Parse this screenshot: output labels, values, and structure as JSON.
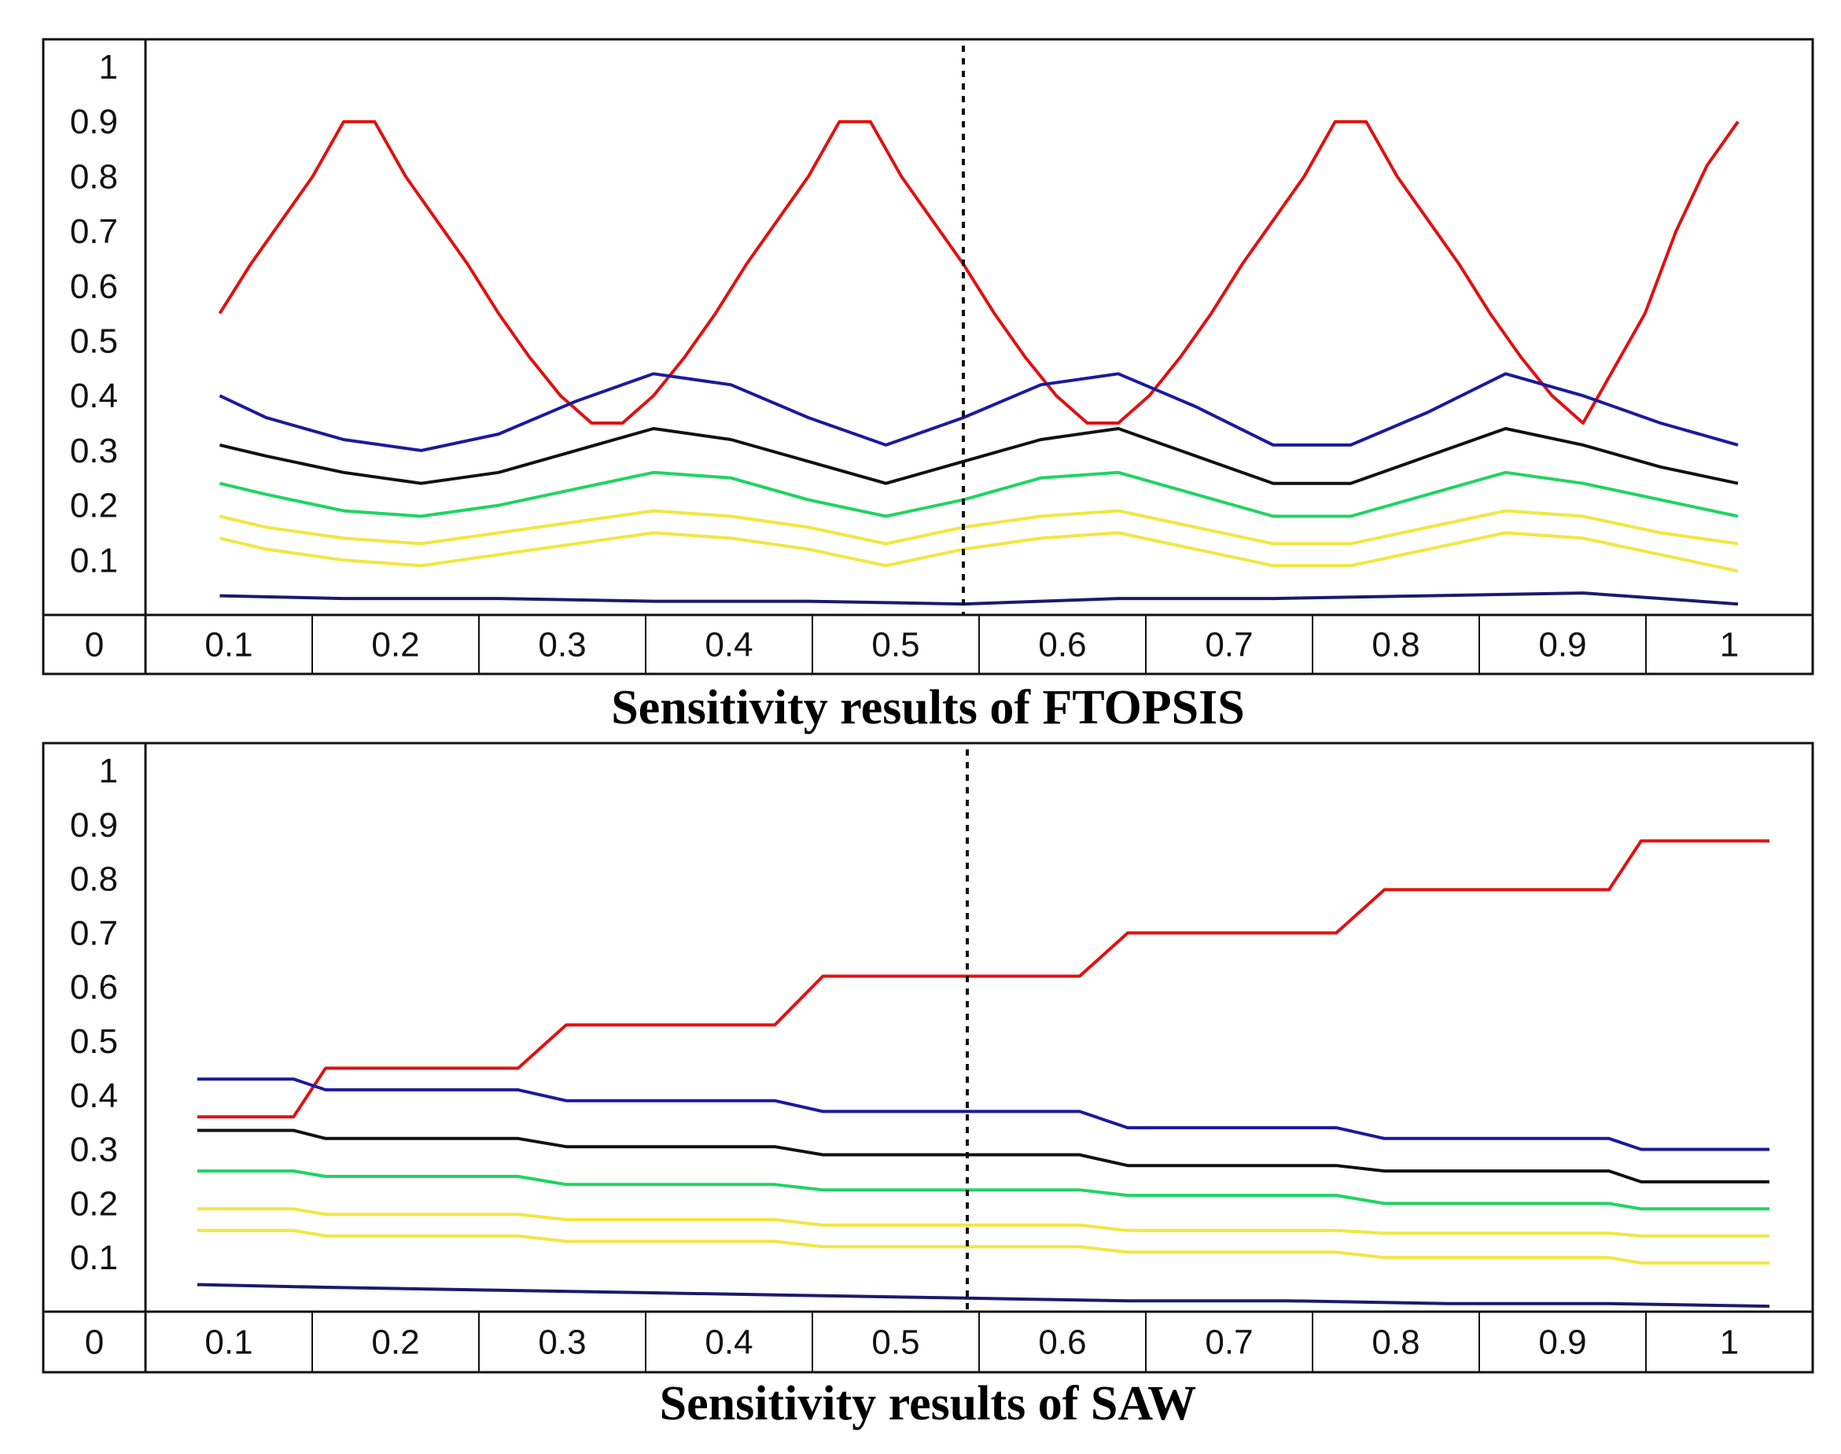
{
  "chart_data": [
    {
      "type": "line",
      "title": "Sensitivity results of FTOPSIS",
      "xlabel": "",
      "ylabel": "",
      "ylim": [
        0,
        1
      ],
      "xlim": [
        0,
        1
      ],
      "y_ticks": [
        "0.1",
        "0.2",
        "0.3",
        "0.4",
        "0.5",
        "0.6",
        "0.7",
        "0.8",
        "0.9",
        "1"
      ],
      "x_labels": [
        "0",
        "0.1",
        "0.2",
        "0.3",
        "0.4",
        "0.5",
        "0.6",
        "0.7",
        "0.8",
        "0.9",
        "1"
      ],
      "reference_line": {
        "x": 0.5,
        "style": "dotted"
      },
      "series": [
        {
          "name": "red",
          "color": "#e11010",
          "x": [
            0.02,
            0.04,
            0.06,
            0.08,
            0.1,
            0.12,
            0.14,
            0.16,
            0.18,
            0.2,
            0.22,
            0.24,
            0.26,
            0.28,
            0.3,
            0.32,
            0.34,
            0.36,
            0.38,
            0.4,
            0.42,
            0.44,
            0.46,
            0.48,
            0.5,
            0.52,
            0.54,
            0.56,
            0.58,
            0.6,
            0.62,
            0.64,
            0.66,
            0.68,
            0.7,
            0.72,
            0.74,
            0.76,
            0.78,
            0.8,
            0.82,
            0.84,
            0.86,
            0.88,
            0.9,
            0.92,
            0.94,
            0.96,
            0.98,
            1.0
          ],
          "values": [
            0.55,
            0.64,
            0.72,
            0.8,
            0.9,
            0.9,
            0.8,
            0.72,
            0.64,
            0.55,
            0.47,
            0.4,
            0.35,
            0.35,
            0.4,
            0.47,
            0.55,
            0.64,
            0.72,
            0.8,
            0.9,
            0.9,
            0.8,
            0.72,
            0.64,
            0.55,
            0.47,
            0.4,
            0.35,
            0.35,
            0.4,
            0.47,
            0.55,
            0.64,
            0.72,
            0.8,
            0.9,
            0.9,
            0.8,
            0.72,
            0.64,
            0.55,
            0.47,
            0.4,
            0.35,
            0.45,
            0.55,
            0.7,
            0.82,
            0.9
          ]
        },
        {
          "name": "blue",
          "color": "#1a1a9e",
          "x": [
            0.02,
            0.05,
            0.1,
            0.15,
            0.2,
            0.25,
            0.3,
            0.35,
            0.4,
            0.45,
            0.5,
            0.55,
            0.6,
            0.65,
            0.7,
            0.75,
            0.8,
            0.85,
            0.9,
            0.95,
            1.0
          ],
          "values": [
            0.4,
            0.36,
            0.32,
            0.3,
            0.33,
            0.39,
            0.44,
            0.42,
            0.36,
            0.31,
            0.36,
            0.42,
            0.44,
            0.38,
            0.31,
            0.31,
            0.37,
            0.44,
            0.4,
            0.35,
            0.31
          ]
        },
        {
          "name": "black",
          "color": "#111111",
          "x": [
            0.02,
            0.05,
            0.1,
            0.15,
            0.2,
            0.25,
            0.3,
            0.35,
            0.4,
            0.45,
            0.5,
            0.55,
            0.6,
            0.65,
            0.7,
            0.75,
            0.8,
            0.85,
            0.9,
            0.95,
            1.0
          ],
          "values": [
            0.31,
            0.29,
            0.26,
            0.24,
            0.26,
            0.3,
            0.34,
            0.32,
            0.28,
            0.24,
            0.28,
            0.32,
            0.34,
            0.29,
            0.24,
            0.24,
            0.29,
            0.34,
            0.31,
            0.27,
            0.24
          ]
        },
        {
          "name": "green",
          "color": "#1fd460",
          "x": [
            0.02,
            0.05,
            0.1,
            0.15,
            0.2,
            0.25,
            0.3,
            0.35,
            0.4,
            0.45,
            0.5,
            0.55,
            0.6,
            0.65,
            0.7,
            0.75,
            0.8,
            0.85,
            0.9,
            0.95,
            1.0
          ],
          "values": [
            0.24,
            0.22,
            0.19,
            0.18,
            0.2,
            0.23,
            0.26,
            0.25,
            0.21,
            0.18,
            0.21,
            0.25,
            0.26,
            0.22,
            0.18,
            0.18,
            0.22,
            0.26,
            0.24,
            0.21,
            0.18
          ]
        },
        {
          "name": "yellow",
          "color": "#f2e640",
          "x": [
            0.02,
            0.05,
            0.1,
            0.15,
            0.2,
            0.25,
            0.3,
            0.35,
            0.4,
            0.45,
            0.5,
            0.55,
            0.6,
            0.65,
            0.7,
            0.75,
            0.8,
            0.85,
            0.9,
            0.95,
            1.0
          ],
          "values": [
            0.18,
            0.16,
            0.14,
            0.13,
            0.15,
            0.17,
            0.19,
            0.18,
            0.16,
            0.13,
            0.16,
            0.18,
            0.19,
            0.16,
            0.13,
            0.13,
            0.16,
            0.19,
            0.18,
            0.15,
            0.13
          ]
        },
        {
          "name": "yellow-2",
          "color": "#f2e640",
          "x": [
            0.02,
            0.05,
            0.1,
            0.15,
            0.2,
            0.25,
            0.3,
            0.35,
            0.4,
            0.45,
            0.5,
            0.55,
            0.6,
            0.65,
            0.7,
            0.75,
            0.8,
            0.85,
            0.9,
            0.95,
            1.0
          ],
          "values": [
            0.14,
            0.12,
            0.1,
            0.09,
            0.11,
            0.13,
            0.15,
            0.14,
            0.12,
            0.09,
            0.12,
            0.14,
            0.15,
            0.12,
            0.09,
            0.09,
            0.12,
            0.15,
            0.14,
            0.11,
            0.08
          ]
        },
        {
          "name": "navy-low",
          "color": "#1a1a6e",
          "x": [
            0.02,
            0.1,
            0.2,
            0.3,
            0.4,
            0.5,
            0.6,
            0.7,
            0.8,
            0.9,
            1.0
          ],
          "values": [
            0.035,
            0.03,
            0.03,
            0.025,
            0.025,
            0.02,
            0.03,
            0.03,
            0.035,
            0.04,
            0.02
          ]
        }
      ]
    },
    {
      "type": "line",
      "title": "Sensitivity results of SAW",
      "xlabel": "",
      "ylabel": "",
      "ylim": [
        0,
        1
      ],
      "xlim": [
        0,
        1
      ],
      "y_ticks": [
        "0.1",
        "0.2",
        "0.3",
        "0.4",
        "0.5",
        "0.6",
        "0.7",
        "0.8",
        "0.9",
        "1"
      ],
      "x_labels": [
        "0",
        "0.1",
        "0.2",
        "0.3",
        "0.4",
        "0.5",
        "0.6",
        "0.7",
        "0.8",
        "0.9",
        "1"
      ],
      "reference_line": {
        "x": 0.5,
        "style": "dotted"
      },
      "series": [
        {
          "name": "red",
          "color": "#e11010",
          "x": [
            0.02,
            0.08,
            0.1,
            0.22,
            0.25,
            0.38,
            0.41,
            0.57,
            0.6,
            0.73,
            0.76,
            0.9,
            0.92,
            1.0
          ],
          "values": [
            0.36,
            0.36,
            0.45,
            0.45,
            0.53,
            0.53,
            0.62,
            0.62,
            0.7,
            0.7,
            0.78,
            0.78,
            0.87,
            0.87
          ]
        },
        {
          "name": "blue",
          "color": "#1a1a9e",
          "x": [
            0.02,
            0.08,
            0.1,
            0.22,
            0.25,
            0.38,
            0.41,
            0.57,
            0.6,
            0.73,
            0.76,
            0.9,
            0.92,
            1.0
          ],
          "values": [
            0.43,
            0.43,
            0.41,
            0.41,
            0.39,
            0.39,
            0.37,
            0.37,
            0.34,
            0.34,
            0.32,
            0.32,
            0.3,
            0.3
          ]
        },
        {
          "name": "black",
          "color": "#111111",
          "x": [
            0.02,
            0.08,
            0.1,
            0.22,
            0.25,
            0.38,
            0.41,
            0.57,
            0.6,
            0.73,
            0.76,
            0.9,
            0.92,
            1.0
          ],
          "values": [
            0.335,
            0.335,
            0.32,
            0.32,
            0.305,
            0.305,
            0.29,
            0.29,
            0.27,
            0.27,
            0.26,
            0.26,
            0.24,
            0.24
          ]
        },
        {
          "name": "green",
          "color": "#1fd460",
          "x": [
            0.02,
            0.08,
            0.1,
            0.22,
            0.25,
            0.38,
            0.41,
            0.57,
            0.6,
            0.73,
            0.76,
            0.9,
            0.92,
            1.0
          ],
          "values": [
            0.26,
            0.26,
            0.25,
            0.25,
            0.235,
            0.235,
            0.225,
            0.225,
            0.215,
            0.215,
            0.2,
            0.2,
            0.19,
            0.19
          ]
        },
        {
          "name": "yellow",
          "color": "#f2e640",
          "x": [
            0.02,
            0.08,
            0.1,
            0.22,
            0.25,
            0.38,
            0.41,
            0.57,
            0.6,
            0.73,
            0.76,
            0.9,
            0.92,
            1.0
          ],
          "values": [
            0.19,
            0.19,
            0.18,
            0.18,
            0.17,
            0.17,
            0.16,
            0.16,
            0.15,
            0.15,
            0.145,
            0.145,
            0.14,
            0.14
          ]
        },
        {
          "name": "yellow-2",
          "color": "#f2e640",
          "x": [
            0.02,
            0.08,
            0.1,
            0.22,
            0.25,
            0.38,
            0.41,
            0.57,
            0.6,
            0.73,
            0.76,
            0.9,
            0.92,
            1.0
          ],
          "values": [
            0.15,
            0.15,
            0.14,
            0.14,
            0.13,
            0.13,
            0.12,
            0.12,
            0.11,
            0.11,
            0.1,
            0.1,
            0.09,
            0.09
          ]
        },
        {
          "name": "navy-low",
          "color": "#1a1a6e",
          "x": [
            0.02,
            0.1,
            0.2,
            0.3,
            0.4,
            0.5,
            0.6,
            0.7,
            0.8,
            0.9,
            1.0
          ],
          "values": [
            0.05,
            0.045,
            0.04,
            0.035,
            0.03,
            0.025,
            0.02,
            0.02,
            0.015,
            0.015,
            0.01
          ]
        }
      ]
    }
  ]
}
